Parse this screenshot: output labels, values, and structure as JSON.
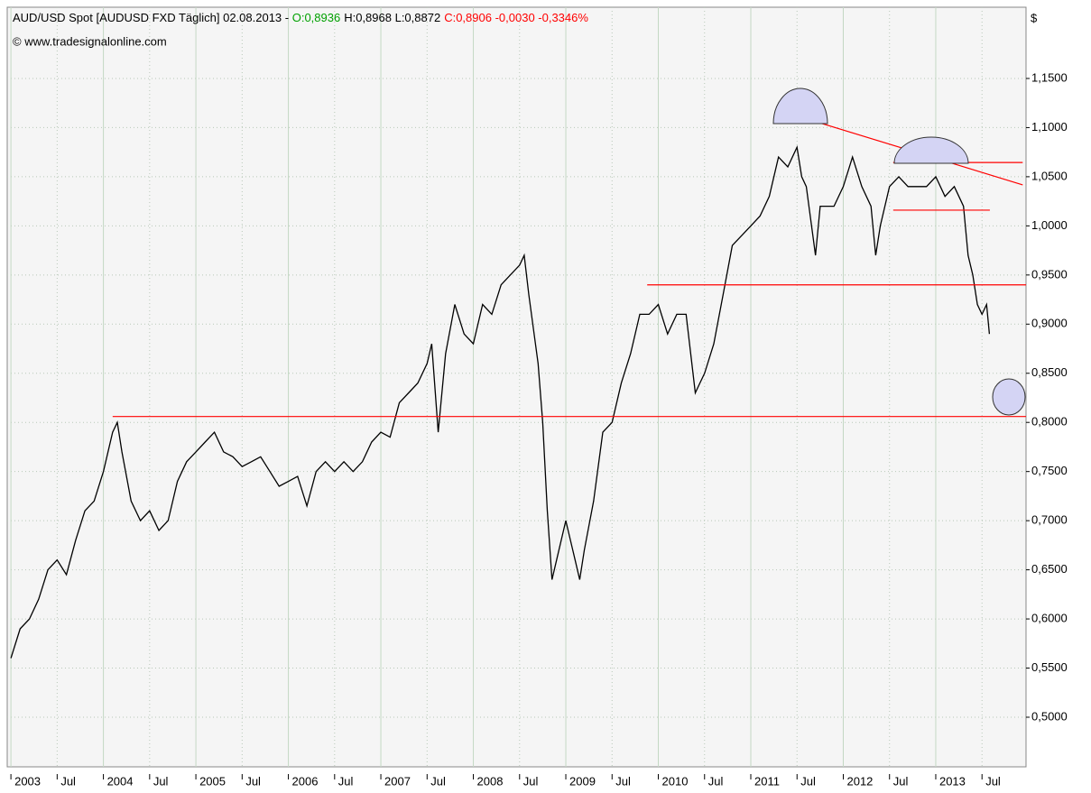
{
  "chart_data": {
    "type": "line",
    "title": "AUD/USD Spot [AUDUSD FXD  Täglich] 02.08.2013 - ",
    "quote": {
      "open": "O:0,8936",
      "high_low": "H:0,8968 L:0,8872",
      "close": "C:0,8906 -0,0030 -0,3346%"
    },
    "subtitle": "© www.tradesignalonline.com",
    "y_unit": "$",
    "xlim": [
      2002.96,
      2013.976
    ],
    "ylim": [
      0.4495,
      1.2225
    ],
    "xticks": [
      2003,
      {
        "value": 2003.5,
        "label": "Jul"
      },
      2004,
      {
        "value": 2004.5,
        "label": "Jul"
      },
      2005,
      {
        "value": 2005.5,
        "label": "Jul"
      },
      2006,
      {
        "value": 2006.5,
        "label": "Jul"
      },
      2007,
      {
        "value": 2007.5,
        "label": "Jul"
      },
      2008,
      {
        "value": 2008.5,
        "label": "Jul"
      },
      2009,
      {
        "value": 2009.5,
        "label": "Jul"
      },
      2010,
      {
        "value": 2010.5,
        "label": "Jul"
      },
      2011,
      {
        "value": 2011.5,
        "label": "Jul"
      },
      2012,
      {
        "value": 2012.5,
        "label": "Jul"
      },
      2013,
      {
        "value": 2013.5,
        "label": "Jul"
      }
    ],
    "yticks": [
      {
        "value": 0.5,
        "label": "0,5000"
      },
      {
        "value": 0.55,
        "label": "0,5500"
      },
      {
        "value": 0.6,
        "label": "0,6000"
      },
      {
        "value": 0.65,
        "label": "0,6500"
      },
      {
        "value": 0.7,
        "label": "0,7000"
      },
      {
        "value": 0.75,
        "label": "0,7500"
      },
      {
        "value": 0.8,
        "label": "0,8000"
      },
      {
        "value": 0.85,
        "label": "0,8500"
      },
      {
        "value": 0.9,
        "label": "0,9000"
      },
      {
        "value": 0.95,
        "label": "0,9500"
      },
      {
        "value": 1.0,
        "label": "1,0000"
      },
      {
        "value": 1.05,
        "label": "1,0500"
      },
      {
        "value": 1.1,
        "label": "1,1000"
      },
      {
        "value": 1.15,
        "label": "1,1500"
      }
    ],
    "grid": true,
    "x": [
      2003.0,
      2003.1,
      2003.2,
      2003.3,
      2003.4,
      2003.5,
      2003.6,
      2003.7,
      2003.8,
      2003.9,
      2004.0,
      2004.1,
      2004.15,
      2004.2,
      2004.3,
      2004.4,
      2004.5,
      2004.6,
      2004.7,
      2004.8,
      2004.9,
      2005.0,
      2005.1,
      2005.2,
      2005.3,
      2005.4,
      2005.5,
      2005.6,
      2005.7,
      2005.8,
      2005.9,
      2006.0,
      2006.1,
      2006.2,
      2006.3,
      2006.4,
      2006.5,
      2006.6,
      2006.7,
      2006.8,
      2006.9,
      2007.0,
      2007.1,
      2007.2,
      2007.3,
      2007.4,
      2007.5,
      2007.55,
      2007.62,
      2007.7,
      2007.8,
      2007.9,
      2008.0,
      2008.1,
      2008.2,
      2008.3,
      2008.4,
      2008.5,
      2008.55,
      2008.6,
      2008.7,
      2008.75,
      2008.8,
      2008.85,
      2008.9,
      2009.0,
      2009.1,
      2009.15,
      2009.2,
      2009.3,
      2009.4,
      2009.5,
      2009.6,
      2009.7,
      2009.8,
      2009.9,
      2010.0,
      2010.1,
      2010.2,
      2010.3,
      2010.35,
      2010.4,
      2010.45,
      2010.5,
      2010.6,
      2010.7,
      2010.8,
      2010.9,
      2011.0,
      2011.1,
      2011.2,
      2011.3,
      2011.4,
      2011.5,
      2011.55,
      2011.6,
      2011.7,
      2011.75,
      2011.8,
      2011.9,
      2012.0,
      2012.1,
      2012.2,
      2012.3,
      2012.35,
      2012.4,
      2012.5,
      2012.6,
      2012.7,
      2012.8,
      2012.9,
      2013.0,
      2013.1,
      2013.2,
      2013.3,
      2013.35,
      2013.4,
      2013.45,
      2013.5,
      2013.55,
      2013.58
    ],
    "series": [
      {
        "name": "AUD/USD Spot",
        "color": "#000000",
        "values": [
          0.56,
          0.59,
          0.6,
          0.62,
          0.65,
          0.66,
          0.645,
          0.68,
          0.71,
          0.72,
          0.75,
          0.79,
          0.8,
          0.77,
          0.72,
          0.7,
          0.71,
          0.69,
          0.7,
          0.74,
          0.76,
          0.77,
          0.78,
          0.79,
          0.77,
          0.765,
          0.755,
          0.76,
          0.765,
          0.75,
          0.735,
          0.74,
          0.745,
          0.715,
          0.75,
          0.76,
          0.75,
          0.76,
          0.75,
          0.76,
          0.78,
          0.79,
          0.785,
          0.82,
          0.83,
          0.84,
          0.86,
          0.88,
          0.79,
          0.87,
          0.92,
          0.89,
          0.88,
          0.92,
          0.91,
          0.94,
          0.95,
          0.96,
          0.97,
          0.93,
          0.86,
          0.8,
          0.71,
          0.64,
          0.66,
          0.7,
          0.66,
          0.64,
          0.67,
          0.72,
          0.79,
          0.8,
          0.84,
          0.87,
          0.91,
          0.91,
          0.92,
          0.89,
          0.91,
          0.91,
          0.87,
          0.83,
          0.84,
          0.85,
          0.88,
          0.93,
          0.98,
          0.99,
          1.0,
          1.01,
          1.03,
          1.07,
          1.06,
          1.08,
          1.05,
          1.04,
          0.97,
          1.02,
          1.02,
          1.02,
          1.04,
          1.07,
          1.04,
          1.02,
          0.97,
          1.0,
          1.04,
          1.05,
          1.04,
          1.04,
          1.04,
          1.05,
          1.03,
          1.04,
          1.02,
          0.97,
          0.95,
          0.92,
          0.91,
          0.92,
          0.89
        ]
      }
    ],
    "trend_lines": [
      {
        "color": "#ff0000",
        "x": [
          2004.1,
          2013.976
        ],
        "y": [
          0.806,
          0.806
        ]
      },
      {
        "color": "#ff0000",
        "x": [
          2009.88,
          2013.976
        ],
        "y": [
          0.94,
          0.94
        ]
      },
      {
        "color": "#ff0000",
        "x": [
          2012.54,
          2013.585
        ],
        "y": [
          1.016,
          1.016
        ]
      },
      {
        "color": "#ff0000",
        "x": [
          2012.54,
          2013.94
        ],
        "y": [
          1.0645,
          1.0645
        ]
      },
      {
        "color": "#ff0000",
        "x": [
          2011.55,
          2013.94
        ],
        "y": [
          1.1105,
          1.0417
        ]
      }
    ]
  }
}
